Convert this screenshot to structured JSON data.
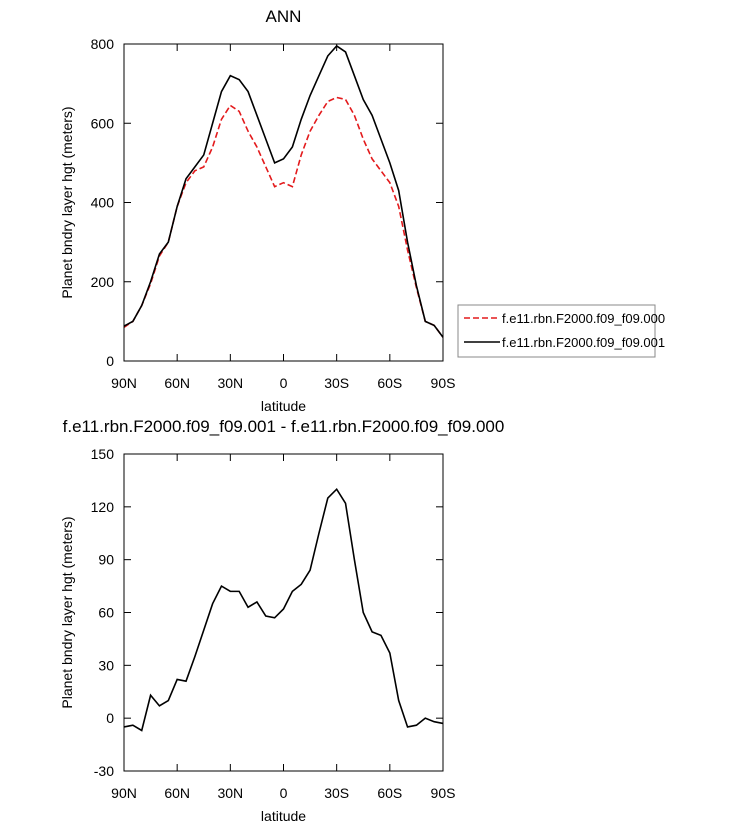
{
  "chart_data": [
    {
      "type": "line",
      "title": "ANN",
      "xlabel": "latitude",
      "ylabel": "Planet bndry layer hgt (meters)",
      "x": [
        90,
        85,
        80,
        75,
        70,
        65,
        60,
        55,
        50,
        45,
        40,
        35,
        30,
        25,
        20,
        15,
        10,
        5,
        0,
        -5,
        -10,
        -15,
        -20,
        -25,
        -30,
        -35,
        -40,
        -45,
        -50,
        -55,
        -60,
        -65,
        -70,
        -75,
        -80,
        -85,
        -90
      ],
      "series": [
        {
          "name": "f.e11.rbn.F2000.f09_f09.000",
          "color": "#e31a1c",
          "dashed": true,
          "values": [
            85,
            100,
            140,
            195,
            265,
            300,
            390,
            450,
            480,
            490,
            540,
            610,
            645,
            630,
            580,
            540,
            490,
            440,
            450,
            440,
            520,
            580,
            620,
            655,
            665,
            660,
            620,
            560,
            510,
            480,
            450,
            390,
            280,
            185,
            100,
            90,
            60
          ]
        },
        {
          "name": "f.e11.rbn.F2000.f09_f09.001",
          "color": "#000000",
          "dashed": false,
          "values": [
            88,
            100,
            140,
            200,
            270,
            300,
            390,
            460,
            490,
            520,
            600,
            680,
            720,
            710,
            680,
            620,
            560,
            500,
            510,
            540,
            610,
            670,
            720,
            770,
            795,
            780,
            720,
            660,
            620,
            560,
            500,
            430,
            300,
            190,
            100,
            90,
            60
          ]
        }
      ],
      "xlim": [
        90,
        -90
      ],
      "xticks": [
        {
          "value": 90,
          "label": "90N"
        },
        {
          "value": 60,
          "label": "60N"
        },
        {
          "value": 30,
          "label": "30N"
        },
        0,
        {
          "value": -30,
          "label": "30S"
        },
        {
          "value": -60,
          "label": "60S"
        },
        {
          "value": -90,
          "label": "90S"
        }
      ],
      "ylim": [
        0,
        800
      ],
      "yticks": [
        0,
        200,
        400,
        600,
        800
      ],
      "legend": "right"
    },
    {
      "type": "line",
      "title": "f.e11.rbn.F2000.f09_f09.001 - f.e11.rbn.F2000.f09_f09.000",
      "xlabel": "latitude",
      "ylabel": "Planet bndry layer hgt (meters)",
      "x": [
        90,
        85,
        80,
        75,
        70,
        65,
        60,
        55,
        50,
        45,
        40,
        35,
        30,
        25,
        20,
        15,
        10,
        5,
        0,
        -5,
        -10,
        -15,
        -20,
        -25,
        -30,
        -35,
        -40,
        -45,
        -50,
        -55,
        -60,
        -65,
        -70,
        -75,
        -80,
        -85,
        -90
      ],
      "series": [
        {
          "color": "#000000",
          "dashed": false,
          "values": [
            -5,
            -4,
            -7,
            13,
            7,
            10,
            22,
            21,
            35,
            50,
            65,
            75,
            72,
            72,
            63,
            66,
            58,
            57,
            62,
            72,
            76,
            84,
            105,
            125,
            130,
            122,
            90,
            60,
            49,
            47,
            37,
            10,
            -5,
            -4,
            0,
            -2,
            -3
          ]
        }
      ],
      "xlim": [
        90,
        -90
      ],
      "xticks": [
        {
          "value": 90,
          "label": "90N"
        },
        {
          "value": 60,
          "label": "60N"
        },
        {
          "value": 30,
          "label": "30N"
        },
        0,
        {
          "value": -30,
          "label": "30S"
        },
        {
          "value": -60,
          "label": "60S"
        },
        {
          "value": -90,
          "label": "90S"
        }
      ],
      "ylim": [
        -30,
        150
      ],
      "yticks": [
        -30,
        0,
        30,
        60,
        90,
        120,
        150
      ]
    }
  ]
}
